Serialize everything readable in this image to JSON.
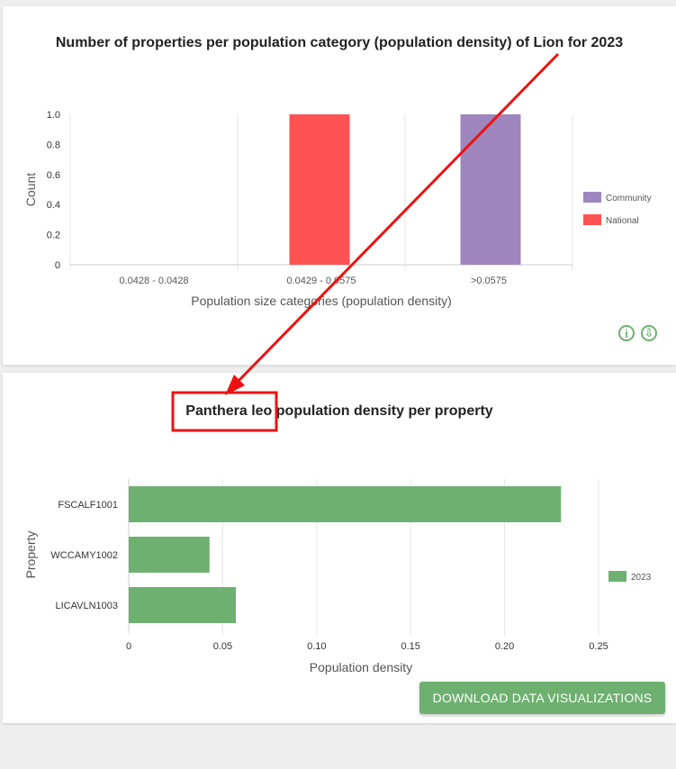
{
  "chart_data": [
    {
      "type": "bar",
      "title": "Number of properties per population category (population density) of Lion for 2023",
      "xlabel": "Population size categories (population density)",
      "ylabel": "Count",
      "categories": [
        "0.0428 - 0.0428",
        "0.0429 - 0.0575",
        ">0.0575"
      ],
      "series": [
        {
          "name": "Community",
          "color": "#9f86bf",
          "values": [
            0,
            0,
            1
          ]
        },
        {
          "name": "National",
          "color": "#ff5252",
          "values": [
            0,
            1,
            0
          ]
        }
      ],
      "ylim": [
        0,
        1
      ],
      "yticks": [
        "0",
        "0.2",
        "0.4",
        "0.6",
        "0.8",
        "1.0"
      ],
      "legend": "right",
      "grid": "vertical"
    },
    {
      "type": "bar",
      "orientation": "horizontal",
      "title_prefix": "Panthera leo",
      "title_suffix": " population density per property",
      "xlabel": "Population density",
      "ylabel": "Property",
      "categories": [
        "FSCALF1001",
        "WCCAMY1002",
        "LICAVLN1003"
      ],
      "series": [
        {
          "name": "2023",
          "color": "#6eb070",
          "values": [
            0.23,
            0.043,
            0.057
          ]
        }
      ],
      "xlim": [
        0,
        0.25
      ],
      "xticks": [
        "0",
        "0.05",
        "0.10",
        "0.15",
        "0.20",
        "0.25"
      ],
      "legend": "right",
      "grid": "vertical"
    }
  ],
  "buttons": {
    "download_label": "DOWNLOAD DATA VISUALIZATIONS",
    "info_glyph": "i",
    "download_glyph": "⇩"
  },
  "icons": {
    "info": "info-icon",
    "download": "download-icon"
  },
  "annotation_color": "#ee1111"
}
